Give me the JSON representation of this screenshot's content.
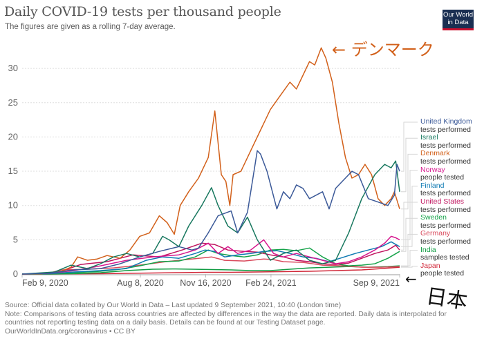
{
  "header": {
    "title": "Daily COVID-19 tests per thousand people",
    "subtitle": "The figures are given as a rolling 7-day average.",
    "logo_line1": "Our World",
    "logo_line2": "in Data"
  },
  "annotations": {
    "denmark": "← デンマーク",
    "japan_arrow": "←",
    "japan": "日本"
  },
  "footer": {
    "source": "Source: Official data collated by Our World in Data – Last updated 9 September 2021, 10:40 (London time)",
    "note1": "Note: Comparisons of testing data across countries are affected by differences in the way the data are reported. Daily data is interpolated for",
    "note2": "countries not reporting testing data on a daily basis. Details can be found at our Testing Dataset page.",
    "credit": "OurWorldInData.org/coronavirus • CC BY"
  },
  "chart_data": {
    "type": "line",
    "title": "Daily COVID-19 tests per thousand people",
    "subtitle": "The figures are given as a rolling 7-day average.",
    "xlabel": "",
    "ylabel": "",
    "x_start": "2020-02-09",
    "x_end": "2021-09-09",
    "ylim": [
      0,
      33
    ],
    "yticks": [
      0,
      5,
      10,
      15,
      20,
      25,
      30
    ],
    "ytick_labels": [
      "0",
      "5",
      "10",
      "15",
      "20",
      "25",
      "30"
    ],
    "xticks": [
      {
        "day": 0,
        "label": "Feb 9, 2020"
      },
      {
        "day": 181,
        "label": "Aug 8, 2020"
      },
      {
        "day": 281,
        "label": "Nov 16, 2020"
      },
      {
        "day": 381,
        "label": "Feb 24, 2021"
      },
      {
        "day": 578,
        "label": "Sep 9, 2021"
      }
    ],
    "grid": true,
    "legend_placement": "right",
    "series": [
      {
        "name": "United Kingdom",
        "sub": "tests performed",
        "color": "#3b5998",
        "points": [
          [
            40,
            0.1
          ],
          [
            80,
            0.6
          ],
          [
            120,
            0.8
          ],
          [
            150,
            1.5
          ],
          [
            180,
            2.5
          ],
          [
            210,
            3.3
          ],
          [
            240,
            4
          ],
          [
            260,
            3.5
          ],
          [
            270,
            3.8
          ],
          [
            285,
            6
          ],
          [
            300,
            8.5
          ],
          [
            320,
            9.2
          ],
          [
            330,
            6
          ],
          [
            345,
            9
          ],
          [
            360,
            18
          ],
          [
            365,
            17.5
          ],
          [
            375,
            15
          ],
          [
            390,
            9.5
          ],
          [
            400,
            12
          ],
          [
            410,
            11
          ],
          [
            420,
            13
          ],
          [
            430,
            12.5
          ],
          [
            440,
            11
          ],
          [
            460,
            12
          ],
          [
            470,
            9.5
          ],
          [
            480,
            12.5
          ],
          [
            495,
            14
          ],
          [
            505,
            15
          ],
          [
            515,
            14.5
          ],
          [
            530,
            11
          ],
          [
            545,
            10.5
          ],
          [
            560,
            10
          ],
          [
            570,
            11.5
          ],
          [
            574,
            16
          ],
          [
            578,
            15
          ]
        ]
      },
      {
        "name": "Israel",
        "sub": "tests performed",
        "color": "#18785f",
        "points": [
          [
            50,
            0.3
          ],
          [
            75,
            1.3
          ],
          [
            100,
            0.8
          ],
          [
            120,
            1.5
          ],
          [
            140,
            2.5
          ],
          [
            160,
            3
          ],
          [
            180,
            2.5
          ],
          [
            200,
            3
          ],
          [
            215,
            5.5
          ],
          [
            225,
            5
          ],
          [
            240,
            4
          ],
          [
            255,
            7
          ],
          [
            275,
            10
          ],
          [
            290,
            12.6
          ],
          [
            300,
            10
          ],
          [
            315,
            7
          ],
          [
            330,
            6
          ],
          [
            345,
            8.3
          ],
          [
            360,
            5
          ],
          [
            380,
            2
          ],
          [
            400,
            3
          ],
          [
            420,
            3.5
          ],
          [
            440,
            2
          ],
          [
            460,
            1.5
          ],
          [
            480,
            2
          ],
          [
            500,
            6
          ],
          [
            520,
            11
          ],
          [
            540,
            14.5
          ],
          [
            555,
            16
          ],
          [
            565,
            15.5
          ],
          [
            572,
            16.5
          ],
          [
            578,
            12
          ]
        ]
      },
      {
        "name": "Denmark",
        "sub": "tests performed",
        "color": "#d2601a",
        "points": [
          [
            30,
            0.05
          ],
          [
            60,
            0.4
          ],
          [
            75,
            1
          ],
          [
            85,
            2.5
          ],
          [
            100,
            2
          ],
          [
            115,
            2.2
          ],
          [
            130,
            2.7
          ],
          [
            150,
            2.3
          ],
          [
            165,
            3.5
          ],
          [
            180,
            5.5
          ],
          [
            195,
            6
          ],
          [
            210,
            8.5
          ],
          [
            222,
            7.5
          ],
          [
            233,
            5.8
          ],
          [
            242,
            10
          ],
          [
            255,
            12
          ],
          [
            270,
            14
          ],
          [
            285,
            17
          ],
          [
            295,
            23.8
          ],
          [
            305,
            14.5
          ],
          [
            312,
            13.5
          ],
          [
            318,
            10
          ],
          [
            323,
            14.5
          ],
          [
            335,
            15
          ],
          [
            350,
            18
          ],
          [
            365,
            21
          ],
          [
            380,
            24
          ],
          [
            395,
            26
          ],
          [
            410,
            28
          ],
          [
            420,
            27
          ],
          [
            430,
            29
          ],
          [
            440,
            31
          ],
          [
            448,
            30.5
          ],
          [
            458,
            33
          ],
          [
            465,
            31.5
          ],
          [
            475,
            28
          ],
          [
            485,
            22
          ],
          [
            495,
            17
          ],
          [
            505,
            14
          ],
          [
            515,
            14.5
          ],
          [
            525,
            16
          ],
          [
            535,
            14.5
          ],
          [
            545,
            11
          ],
          [
            555,
            10
          ],
          [
            565,
            11
          ],
          [
            570,
            12
          ],
          [
            578,
            9.5
          ]
        ]
      },
      {
        "name": "Norway",
        "sub": "people tested",
        "color": "#d6168e",
        "points": [
          [
            40,
            0.1
          ],
          [
            80,
            0.5
          ],
          [
            120,
            1.2
          ],
          [
            160,
            2
          ],
          [
            200,
            2.5
          ],
          [
            240,
            2.8
          ],
          [
            265,
            3.5
          ],
          [
            285,
            4.5
          ],
          [
            300,
            3
          ],
          [
            315,
            4
          ],
          [
            330,
            3
          ],
          [
            350,
            3.5
          ],
          [
            370,
            5
          ],
          [
            385,
            3
          ],
          [
            400,
            2.5
          ],
          [
            420,
            3
          ],
          [
            440,
            2.5
          ],
          [
            460,
            2
          ],
          [
            480,
            1.5
          ],
          [
            500,
            1.8
          ],
          [
            520,
            2.5
          ],
          [
            540,
            3.5
          ],
          [
            555,
            4.5
          ],
          [
            565,
            5.5
          ],
          [
            572,
            5.3
          ],
          [
            578,
            5
          ]
        ]
      },
      {
        "name": "Finland",
        "sub": "tests performed",
        "color": "#0f7ab3",
        "points": [
          [
            40,
            0.05
          ],
          [
            80,
            0.3
          ],
          [
            120,
            0.5
          ],
          [
            160,
            0.8
          ],
          [
            190,
            2
          ],
          [
            215,
            2.5
          ],
          [
            240,
            2.3
          ],
          [
            265,
            3
          ],
          [
            280,
            3.5
          ],
          [
            295,
            3.3
          ],
          [
            310,
            2.5
          ],
          [
            330,
            2.8
          ],
          [
            350,
            3
          ],
          [
            370,
            3.3
          ],
          [
            390,
            3.4
          ],
          [
            410,
            3
          ],
          [
            430,
            2.5
          ],
          [
            450,
            2.3
          ],
          [
            470,
            1.8
          ],
          [
            490,
            2.4
          ],
          [
            510,
            3
          ],
          [
            530,
            3.5
          ],
          [
            550,
            4
          ],
          [
            565,
            4.7
          ],
          [
            578,
            4
          ]
        ]
      },
      {
        "name": "United States",
        "sub": "tests performed",
        "color": "#c0135e",
        "points": [
          [
            30,
            0.05
          ],
          [
            60,
            0.4
          ],
          [
            90,
            1.4
          ],
          [
            130,
            1.8
          ],
          [
            170,
            2.8
          ],
          [
            210,
            2.5
          ],
          [
            245,
            3.5
          ],
          [
            275,
            4.5
          ],
          [
            295,
            4.3
          ],
          [
            315,
            3.5
          ],
          [
            340,
            3.3
          ],
          [
            360,
            3.2
          ],
          [
            380,
            2.8
          ],
          [
            400,
            2.5
          ],
          [
            420,
            2
          ],
          [
            440,
            1.8
          ],
          [
            460,
            1.5
          ],
          [
            480,
            1.4
          ],
          [
            500,
            1.6
          ],
          [
            520,
            2.3
          ],
          [
            540,
            3
          ],
          [
            560,
            3.5
          ],
          [
            572,
            4.2
          ],
          [
            578,
            3.5
          ]
        ]
      },
      {
        "name": "Sweden",
        "sub": "tests performed",
        "color": "#16a34a",
        "points": [
          [
            40,
            0.1
          ],
          [
            80,
            0.2
          ],
          [
            120,
            0.4
          ],
          [
            150,
            0.7
          ],
          [
            180,
            1.2
          ],
          [
            210,
            1.8
          ],
          [
            240,
            1.9
          ],
          [
            265,
            2.5
          ],
          [
            285,
            3.5
          ],
          [
            300,
            3
          ],
          [
            320,
            2.7
          ],
          [
            340,
            2.5
          ],
          [
            360,
            2.8
          ],
          [
            380,
            3.5
          ],
          [
            400,
            3.6
          ],
          [
            420,
            3.4
          ],
          [
            440,
            3.8
          ],
          [
            460,
            2.5
          ],
          [
            480,
            1.5
          ],
          [
            500,
            1.2
          ],
          [
            520,
            1.3
          ],
          [
            540,
            1.5
          ],
          [
            560,
            2.3
          ],
          [
            578,
            3.3
          ]
        ]
      },
      {
        "name": "Germany",
        "sub": "tests performed",
        "color": "#d94a5c",
        "points": [
          [
            40,
            0.1
          ],
          [
            60,
            0.6
          ],
          [
            100,
            0.7
          ],
          [
            140,
            0.9
          ],
          [
            180,
            1.3
          ],
          [
            220,
            1.8
          ],
          [
            260,
            2.2
          ],
          [
            290,
            2.5
          ],
          [
            310,
            2
          ],
          [
            340,
            1.9
          ],
          [
            370,
            2.2
          ],
          [
            385,
            2.1
          ],
          [
            400,
            1.8
          ],
          [
            430,
            1.7
          ],
          [
            460,
            1.3
          ],
          [
            490,
            1.2
          ],
          [
            520,
            1
          ],
          [
            550,
            1
          ],
          [
            578,
            1.1
          ]
        ]
      },
      {
        "name": "India",
        "sub": "samples tested",
        "color": "#119c43",
        "points": [
          [
            40,
            0
          ],
          [
            80,
            0.05
          ],
          [
            120,
            0.2
          ],
          [
            160,
            0.5
          ],
          [
            200,
            0.7
          ],
          [
            230,
            0.75
          ],
          [
            260,
            0.7
          ],
          [
            290,
            0.65
          ],
          [
            320,
            0.6
          ],
          [
            350,
            0.5
          ],
          [
            380,
            0.5
          ],
          [
            410,
            0.7
          ],
          [
            440,
            0.9
          ],
          [
            470,
            1
          ],
          [
            500,
            1.1
          ],
          [
            530,
            1
          ],
          [
            560,
            1.1
          ],
          [
            578,
            1.2
          ]
        ]
      },
      {
        "name": "Japan",
        "sub": "people tested",
        "color": "#d1293a",
        "points": [
          [
            40,
            0
          ],
          [
            80,
            0.03
          ],
          [
            120,
            0.05
          ],
          [
            160,
            0.1
          ],
          [
            200,
            0.15
          ],
          [
            240,
            0.2
          ],
          [
            280,
            0.25
          ],
          [
            320,
            0.25
          ],
          [
            360,
            0.3
          ],
          [
            400,
            0.35
          ],
          [
            440,
            0.4
          ],
          [
            480,
            0.5
          ],
          [
            520,
            0.6
          ],
          [
            550,
            0.8
          ],
          [
            578,
            1
          ]
        ]
      }
    ]
  }
}
